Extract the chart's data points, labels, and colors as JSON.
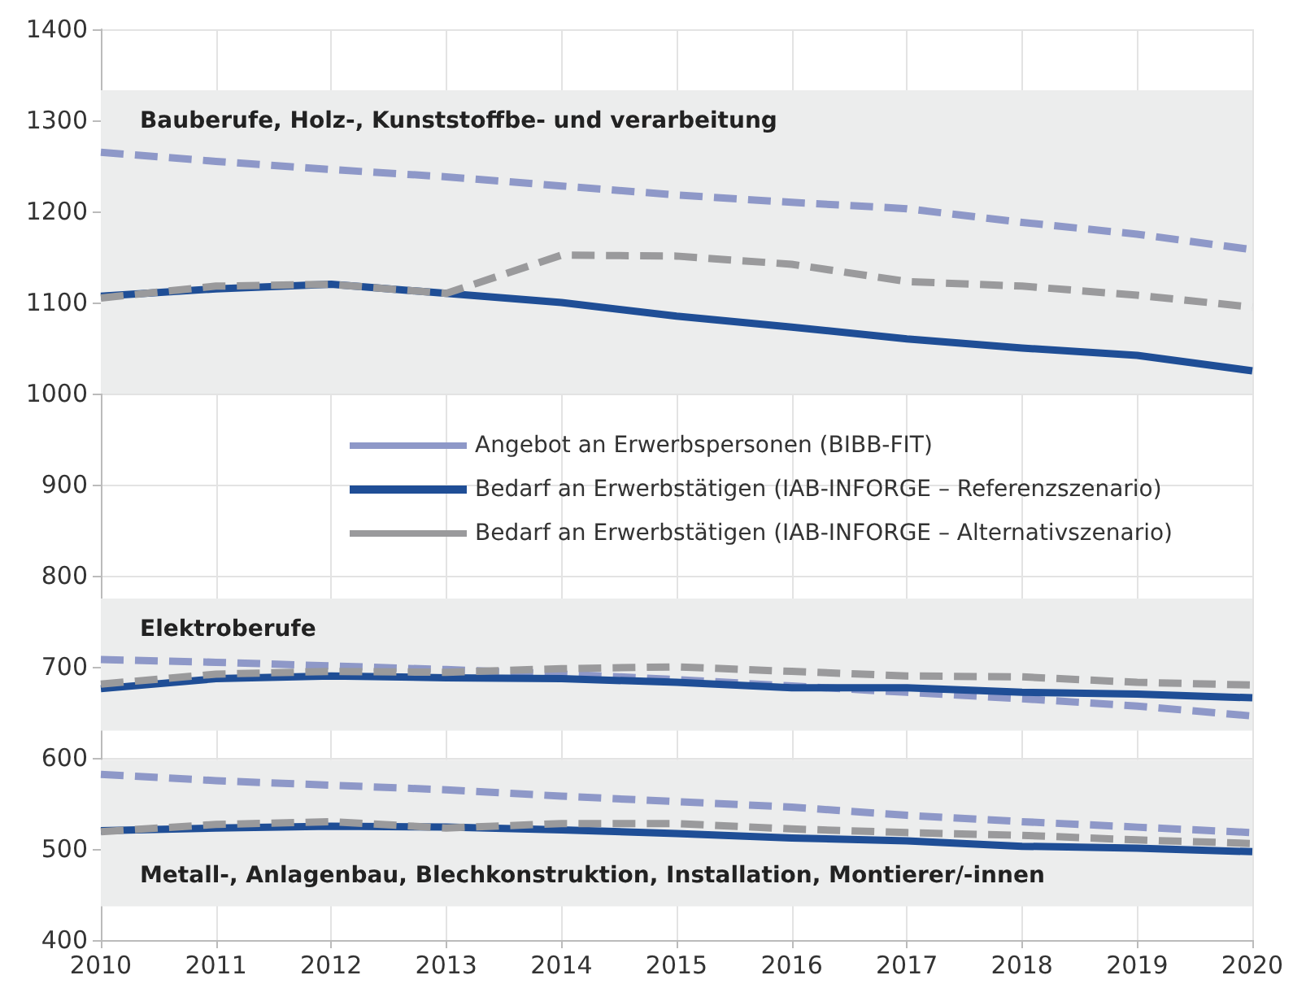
{
  "chart_data": {
    "type": "line",
    "x": [
      2010,
      2011,
      2012,
      2013,
      2014,
      2015,
      2016,
      2017,
      2018,
      2019,
      2020
    ],
    "xlim": [
      2010,
      2020
    ],
    "xticks": [
      2010,
      2011,
      2012,
      2013,
      2014,
      2015,
      2016,
      2017,
      2018,
      2019,
      2020
    ],
    "ylim": [
      400,
      1400
    ],
    "yticks": [
      400,
      500,
      600,
      700,
      800,
      900,
      1000,
      1100,
      1200,
      1300,
      1400
    ],
    "grid": true,
    "marker": "none",
    "legend": "right",
    "series": [
      {
        "name": "Angebot an Erwerbspersonen (BIBB-FIT)",
        "color": "#8e98c8",
        "line_style": "dashed",
        "values": [
          1265,
          1255,
          1246,
          1238,
          1228,
          1218,
          1210,
          1203,
          1188,
          1175,
          1158
        ]
      },
      {
        "name": "Bedarf an Erwerbstätigen (IAB-INFORGE – Referenzszenario)",
        "color": "#1f4e96",
        "line_style": "solid",
        "values": [
          1107,
          1115,
          1120,
          1110,
          1100,
          1085,
          1073,
          1060,
          1050,
          1042,
          1025
        ]
      },
      {
        "name": "Bedarf an Erwerbstätigen (IAB-INFORGE – Alternativszenario)",
        "color": "#9a9a9c",
        "line_style": "dashed",
        "values": [
          1105,
          1118,
          1120,
          1110,
          1152,
          1151,
          1142,
          1123,
          1118,
          1108,
          1095
        ]
      },
      {
        "color": "#8e98c8",
        "line_style": "dashed",
        "values": [
          708,
          705,
          701,
          697,
          692,
          686,
          679,
          672,
          665,
          657,
          646
        ]
      },
      {
        "color": "#1f4e96",
        "line_style": "solid",
        "values": [
          676,
          687,
          690,
          688,
          687,
          683,
          677,
          677,
          672,
          670,
          666
        ]
      },
      {
        "color": "#9a9a9c",
        "line_style": "dashed",
        "values": [
          681,
          692,
          695,
          694,
          698,
          700,
          695,
          690,
          689,
          683,
          680
        ]
      },
      {
        "color": "#8e98c8",
        "line_style": "dashed",
        "values": [
          582,
          575,
          570,
          565,
          558,
          552,
          546,
          537,
          530,
          524,
          518
        ]
      },
      {
        "color": "#1f4e96",
        "line_style": "solid",
        "values": [
          520,
          523,
          525,
          524,
          521,
          517,
          512,
          509,
          503,
          501,
          497
        ]
      },
      {
        "color": "#9a9a9c",
        "line_style": "dashed",
        "values": [
          519,
          527,
          530,
          523,
          528,
          528,
          522,
          518,
          515,
          510,
          506
        ]
      }
    ],
    "bands": [
      {
        "axis": "y",
        "from": 1000,
        "to": 1333,
        "label": "Bauberufe, Holz-, Kunststoffbe- und verarbeitung",
        "color": "#eceded"
      },
      {
        "axis": "y",
        "from": 630,
        "to": 775,
        "label": "Elektroberufe",
        "color": "#eceded"
      },
      {
        "axis": "y",
        "from": 437,
        "to": 598,
        "label": "Metall-, Anlagenbau, Blechkonstruktion, Installation, Montierer/-innen",
        "color": "#eceded"
      }
    ]
  }
}
